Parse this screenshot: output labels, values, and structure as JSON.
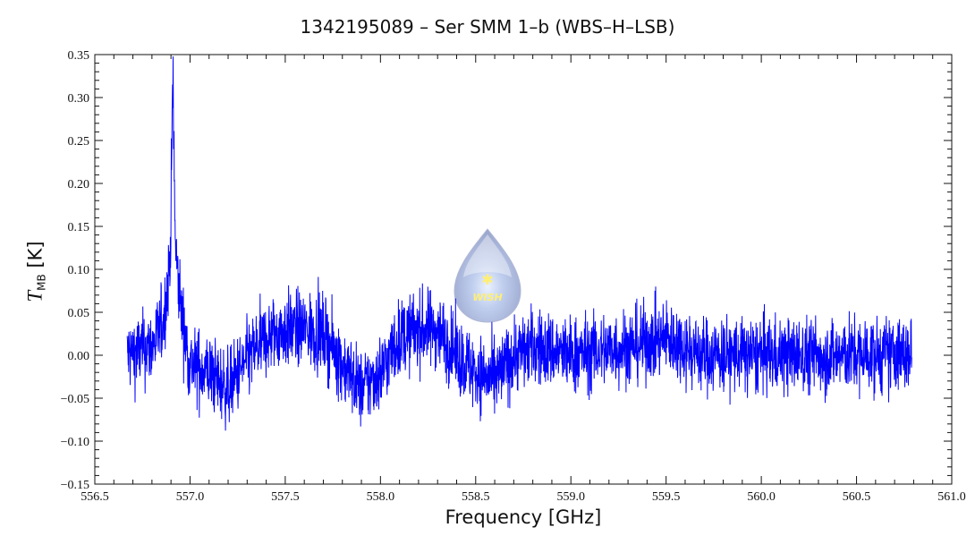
{
  "chart_data": {
    "type": "line",
    "title": "1342195089 – Ser SMM 1–b (WBS–H–LSB)",
    "xlabel": "Frequency [GHz]",
    "ylabel": {
      "symbol": "T",
      "subscript": "MB",
      "unit": "[K]"
    },
    "xlim": [
      556.5,
      561.0
    ],
    "ylim": [
      -0.15,
      0.35
    ],
    "xticks": [
      "556.5",
      "557.0",
      "557.5",
      "558.0",
      "558.5",
      "559.0",
      "559.5",
      "560.0",
      "560.5",
      "561.0"
    ],
    "yticks": [
      "−0.15",
      "−0.10",
      "−0.05",
      "0.00",
      "0.05",
      "0.10",
      "0.15",
      "0.20",
      "0.25",
      "0.30",
      "0.35"
    ],
    "grid": false,
    "series": [
      {
        "color": "#0000ff",
        "x_range": [
          556.67,
          560.79
        ],
        "noise_rms": 0.022,
        "baseline": [
          [
            556.67,
            0.0
          ],
          [
            556.8,
            0.01
          ],
          [
            556.85,
            0.03
          ],
          [
            556.95,
            0.04
          ],
          [
            557.0,
            -0.01
          ],
          [
            557.1,
            -0.02
          ],
          [
            557.2,
            -0.04
          ],
          [
            557.3,
            -0.005
          ],
          [
            557.4,
            0.02
          ],
          [
            557.5,
            0.03
          ],
          [
            557.6,
            0.03
          ],
          [
            557.7,
            0.025
          ],
          [
            557.8,
            -0.01
          ],
          [
            557.9,
            -0.04
          ],
          [
            558.0,
            -0.02
          ],
          [
            558.1,
            0.02
          ],
          [
            558.2,
            0.03
          ],
          [
            558.3,
            0.03
          ],
          [
            558.4,
            0.0
          ],
          [
            558.5,
            -0.02
          ],
          [
            558.6,
            -0.03
          ],
          [
            558.7,
            0.0
          ],
          [
            558.8,
            0.01
          ],
          [
            559.0,
            0.0
          ],
          [
            559.3,
            0.01
          ],
          [
            559.5,
            0.02
          ],
          [
            559.7,
            0.0
          ],
          [
            560.0,
            0.0
          ],
          [
            560.5,
            0.0
          ],
          [
            560.79,
            0.0
          ]
        ],
        "peaks": [
          {
            "center": 556.91,
            "peak": 0.33
          }
        ]
      }
    ]
  },
  "logo": {
    "text": "WISH"
  }
}
